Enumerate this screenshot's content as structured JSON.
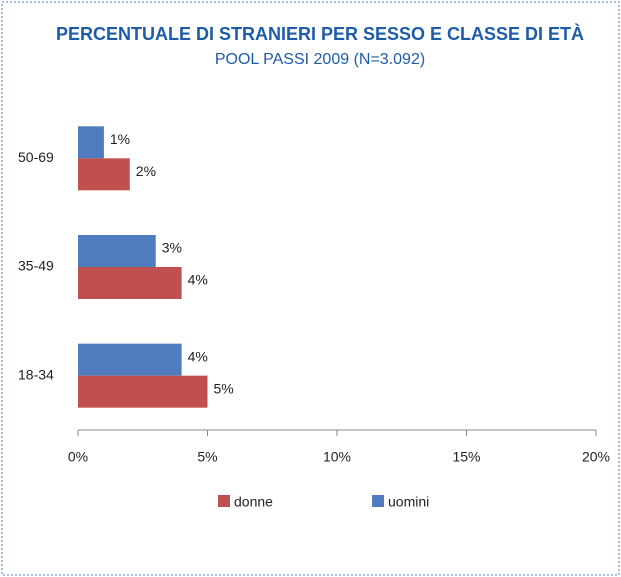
{
  "chart_data": {
    "type": "hbar",
    "title": "PERCENTUALE DI STRANIERI PER SESSO E CLASSE DI ETÀ",
    "subtitle": "POOL PASSI 2009 (N=3.092)",
    "categories": [
      "50-69",
      "35-49",
      "18-34"
    ],
    "series": [
      {
        "name": "donne",
        "color": "#c0504d",
        "values": [
          2,
          4,
          5
        ],
        "value_labels": [
          "2%",
          "4%",
          "5%"
        ]
      },
      {
        "name": "uomini",
        "color": "#4f7bbf",
        "values": [
          1,
          3,
          4
        ],
        "value_labels": [
          "1%",
          "3%",
          "4%"
        ]
      }
    ],
    "xlim": [
      0,
      20
    ],
    "xticks": [
      {
        "value": 0,
        "label": "0%"
      },
      {
        "value": 5,
        "label": "5%"
      },
      {
        "value": 10,
        "label": "10%"
      },
      {
        "value": 15,
        "label": "15%"
      },
      {
        "value": 20,
        "label": "20%"
      }
    ],
    "grid": false,
    "legend": "bottom"
  }
}
